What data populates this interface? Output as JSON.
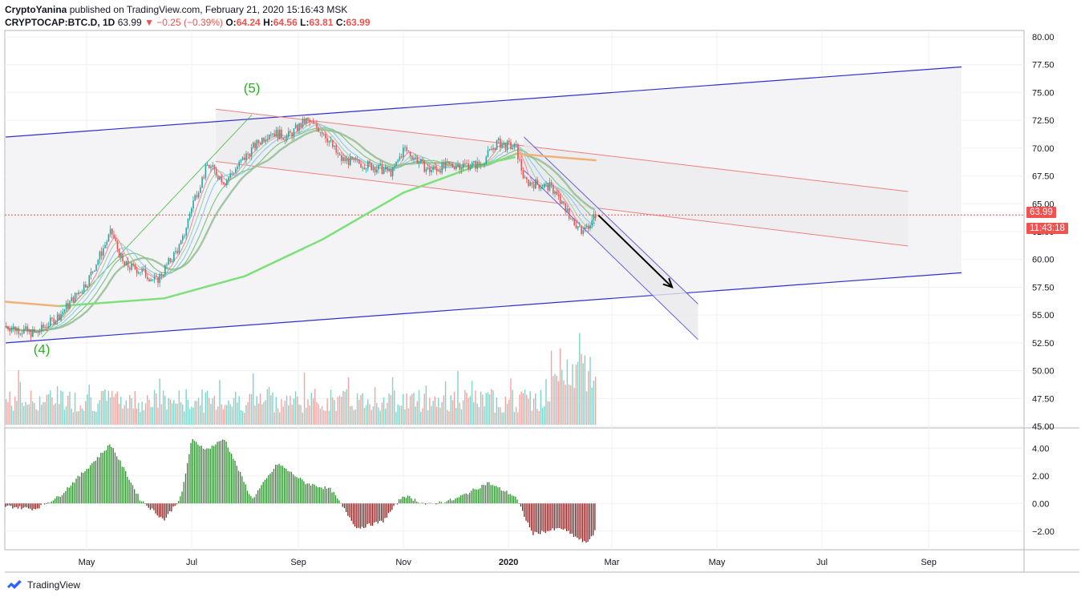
{
  "header": {
    "author": "CryptoYanina",
    "published_text": "published on TradingView.com, February 21, 2020 15:16:43 MSK",
    "symbol": "CRYPTOCAP:BTC.D, 1D",
    "last": "63.99",
    "change": "▼ −0.25 (−0.39%)",
    "o_label": "O:",
    "o_value": "64.24",
    "h_label": "H:",
    "h_value": "64.56",
    "l_label": "L:",
    "l_value": "63.81",
    "c_label": "C:",
    "c_value": "63.99"
  },
  "price_label": "63.99",
  "countdown_label": "11:43:18",
  "footer": {
    "brand": "TradingView"
  },
  "annotations": {
    "wave5": "(5)",
    "wave4": "(4)"
  },
  "colors": {
    "up": "#26a69a",
    "down": "#ef5350",
    "channel": "#2f2fd0",
    "wave": "#28b31e",
    "ma200": "#7ee07a",
    "ma_orange": "#f0b27a",
    "osc_up": "#2e8b2e",
    "osc_down": "#8b1a1a"
  },
  "chart_data": {
    "type": "line",
    "symbol": "CRYPTOCAP:BTC.D",
    "interval": "1D",
    "y_axis_ticks": [
      "80.00",
      "77.50",
      "75.00",
      "72.50",
      "70.00",
      "67.50",
      "65.00",
      "62.50",
      "60.00",
      "57.50",
      "55.00",
      "52.50",
      "50.00",
      "47.50",
      "45.00"
    ],
    "x_axis_ticks": [
      "May",
      "Jul",
      "Sep",
      "Nov",
      "2020",
      "Mar",
      "May",
      "Jul",
      "Sep"
    ],
    "ylim": [
      45.0,
      80.0
    ],
    "oscillator_ticks": [
      "4.00",
      "2.00",
      "0.00",
      "−2.00"
    ],
    "oscillator_ylim": [
      -3.0,
      5.0
    ],
    "price_path": [
      {
        "x": "2019-03-15",
        "y": 54.0
      },
      {
        "x": "2019-04-01",
        "y": 53.3
      },
      {
        "x": "2019-04-15",
        "y": 55.0
      },
      {
        "x": "2019-05-01",
        "y": 58.0
      },
      {
        "x": "2019-05-15",
        "y": 62.5
      },
      {
        "x": "2019-05-22",
        "y": 59.5
      },
      {
        "x": "2019-06-01",
        "y": 59.0
      },
      {
        "x": "2019-06-10",
        "y": 58.0
      },
      {
        "x": "2019-06-25",
        "y": 61.5
      },
      {
        "x": "2019-07-01",
        "y": 65.0
      },
      {
        "x": "2019-07-10",
        "y": 68.5
      },
      {
        "x": "2019-07-20",
        "y": 67.0
      },
      {
        "x": "2019-08-05",
        "y": 70.0
      },
      {
        "x": "2019-08-15",
        "y": 71.5
      },
      {
        "x": "2019-08-25",
        "y": 71.0
      },
      {
        "x": "2019-09-05",
        "y": 72.5
      },
      {
        "x": "2019-09-15",
        "y": 71.5
      },
      {
        "x": "2019-09-25",
        "y": 69.0
      },
      {
        "x": "2019-10-10",
        "y": 68.5
      },
      {
        "x": "2019-10-25",
        "y": 67.8
      },
      {
        "x": "2019-11-01",
        "y": 70.0
      },
      {
        "x": "2019-11-15",
        "y": 68.0
      },
      {
        "x": "2019-12-01",
        "y": 68.5
      },
      {
        "x": "2019-12-15",
        "y": 68.5
      },
      {
        "x": "2019-12-25",
        "y": 70.5
      },
      {
        "x": "2020-01-05",
        "y": 70.0
      },
      {
        "x": "2020-01-10",
        "y": 67.0
      },
      {
        "x": "2020-01-25",
        "y": 66.5
      },
      {
        "x": "2020-02-05",
        "y": 64.0
      },
      {
        "x": "2020-02-12",
        "y": 62.5
      },
      {
        "x": "2020-02-21",
        "y": 63.99
      }
    ],
    "oscillator_path": [
      {
        "x": "2019-03-15",
        "y": -0.2
      },
      {
        "x": "2019-04-01",
        "y": -0.4
      },
      {
        "x": "2019-04-15",
        "y": 0.5
      },
      {
        "x": "2019-05-01",
        "y": 2.5
      },
      {
        "x": "2019-05-15",
        "y": 4.3
      },
      {
        "x": "2019-06-01",
        "y": 0.3
      },
      {
        "x": "2019-06-15",
        "y": -1.2
      },
      {
        "x": "2019-06-25",
        "y": 0.5
      },
      {
        "x": "2019-07-01",
        "y": 4.6
      },
      {
        "x": "2019-07-10",
        "y": 3.9
      },
      {
        "x": "2019-07-20",
        "y": 4.7
      },
      {
        "x": "2019-08-05",
        "y": 0.3
      },
      {
        "x": "2019-08-20",
        "y": 2.9
      },
      {
        "x": "2019-09-05",
        "y": 1.5
      },
      {
        "x": "2019-09-20",
        "y": 1.0
      },
      {
        "x": "2019-10-05",
        "y": -1.8
      },
      {
        "x": "2019-10-20",
        "y": -1.3
      },
      {
        "x": "2019-11-01",
        "y": 0.6
      },
      {
        "x": "2019-11-15",
        "y": -0.1
      },
      {
        "x": "2019-12-01",
        "y": 0.3
      },
      {
        "x": "2019-12-20",
        "y": 1.5
      },
      {
        "x": "2020-01-05",
        "y": 0.5
      },
      {
        "x": "2020-01-15",
        "y": -2.2
      },
      {
        "x": "2020-02-01",
        "y": -1.8
      },
      {
        "x": "2020-02-15",
        "y": -2.9
      },
      {
        "x": "2020-02-21",
        "y": -1.9
      }
    ],
    "drawings": [
      {
        "type": "parallel_channel_upper",
        "points": [
          {
            "x": "2019-03-15",
            "y": 71.0
          },
          {
            "x": "2020-09-20",
            "y": 77.3
          }
        ]
      },
      {
        "type": "parallel_channel_lower",
        "points": [
          {
            "x": "2019-03-15",
            "y": 52.5
          },
          {
            "x": "2020-09-20",
            "y": 58.8
          }
        ]
      },
      {
        "type": "descending_channel_upper",
        "points": [
          {
            "x": "2019-07-15",
            "y": 73.5
          },
          {
            "x": "2020-08-20",
            "y": 66.1
          }
        ]
      },
      {
        "type": "descending_channel_lower",
        "points": [
          {
            "x": "2019-07-15",
            "y": 68.8
          },
          {
            "x": "2020-08-20",
            "y": 61.2
          }
        ]
      },
      {
        "type": "wave_line",
        "points": [
          {
            "x": "2019-04-05",
            "y": 53.0
          },
          {
            "x": "2019-08-05",
            "y": 73.0
          }
        ]
      },
      {
        "type": "arrow",
        "points": [
          {
            "x": "2020-02-22",
            "y": 64.0
          },
          {
            "x": "2020-04-05",
            "y": 57.5
          }
        ]
      }
    ],
    "annotations": [
      {
        "text": "(5)",
        "x": "2019-08-05",
        "y": 75.0
      },
      {
        "text": "(4)",
        "x": "2019-04-05",
        "y": 51.5
      }
    ]
  }
}
